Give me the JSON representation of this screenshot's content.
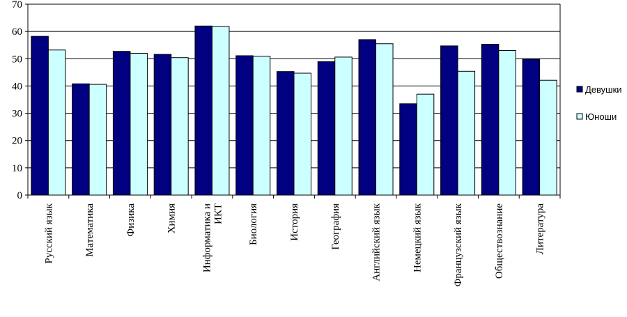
{
  "chart_data": {
    "type": "bar",
    "categories": [
      "Русский язык",
      "Математика",
      "Физика",
      "Химия",
      "Информатика и ИКТ",
      "Биология",
      "История",
      "География",
      "Английский язык",
      "Немецкий язык",
      "Французский язык",
      "Обществознание",
      "Литература"
    ],
    "series": [
      {
        "name": "Девушки",
        "color": "#000080",
        "values": [
          58.2,
          40.8,
          52.7,
          51.6,
          62.0,
          51.1,
          45.3,
          48.9,
          57.0,
          33.5,
          54.7,
          55.3,
          49.8
        ]
      },
      {
        "name": "Юноши",
        "color": "#CCFFFF",
        "values": [
          53.2,
          40.6,
          52.0,
          50.4,
          61.8,
          50.9,
          44.7,
          50.6,
          55.5,
          37.0,
          45.4,
          53.0,
          42.1
        ]
      }
    ],
    "ylim": [
      0,
      70
    ],
    "yticks": [
      "0",
      "10",
      "20",
      "30",
      "40",
      "50",
      "60",
      "70"
    ],
    "grid": true,
    "legend_position": "right",
    "title": "",
    "xlabel": "",
    "ylabel": ""
  }
}
